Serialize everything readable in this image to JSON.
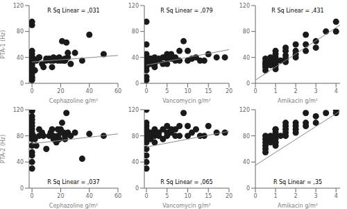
{
  "chart_data": [
    {
      "type": "scatter",
      "xlabel": "Cephazoline g/m²",
      "ylabel": "PTA-1 (Hz)",
      "annotation": "R Sq Linear = ,031",
      "xlim": [
        -2,
        60
      ],
      "ylim": [
        0,
        120
      ],
      "xticks": [
        0,
        20,
        40,
        60
      ],
      "yticks": [
        0,
        40,
        80,
        120
      ],
      "series": [
        {
          "type": "scatter",
          "color": "#1a1a1a",
          "x": [
            0,
            0,
            0,
            0,
            0,
            0,
            0,
            0,
            0,
            0,
            0,
            0,
            0,
            0,
            0,
            0,
            0,
            1,
            1,
            2,
            3,
            5,
            5,
            7,
            8,
            10,
            10,
            12,
            13,
            14,
            15,
            15,
            17,
            18,
            19,
            20,
            20,
            21,
            22,
            23,
            23,
            24,
            25,
            25,
            27,
            30,
            35,
            40,
            50
          ],
          "values": [
            5,
            8,
            10,
            15,
            20,
            25,
            28,
            30,
            33,
            35,
            35,
            40,
            40,
            45,
            50,
            90,
            95,
            35,
            38,
            20,
            35,
            40,
            40,
            30,
            25,
            35,
            38,
            38,
            35,
            25,
            35,
            40,
            38,
            35,
            40,
            35,
            37,
            65,
            35,
            35,
            38,
            63,
            40,
            47,
            30,
            47,
            35,
            75,
            45
          ]
        },
        {
          "type": "line",
          "color": "#888888",
          "x": [
            0,
            60
          ],
          "values": [
            33,
            43
          ]
        }
      ]
    },
    {
      "type": "scatter",
      "xlabel": "Vancomycin g/m²",
      "annotation": "R Sq Linear = ,079",
      "xlim": [
        -0.5,
        20
      ],
      "ylim": [
        0,
        120
      ],
      "xticks": [
        0,
        5,
        10,
        15,
        20
      ],
      "yticks": [
        0,
        40,
        80,
        120
      ],
      "series": [
        {
          "type": "scatter",
          "color": "#1a1a1a",
          "x": [
            0,
            0,
            0,
            0,
            0,
            0,
            0,
            0,
            0,
            0,
            0,
            0,
            0,
            1,
            1,
            1,
            1,
            2,
            2,
            2,
            2,
            3,
            3,
            4,
            4,
            5,
            5,
            5,
            6,
            6,
            7,
            7,
            8,
            8,
            9,
            10,
            10,
            11,
            12,
            13,
            14,
            15,
            17,
            19
          ],
          "values": [
            5,
            10,
            20,
            25,
            28,
            30,
            35,
            35,
            40,
            40,
            45,
            60,
            95,
            30,
            35,
            38,
            38,
            25,
            30,
            35,
            40,
            35,
            38,
            30,
            40,
            30,
            38,
            45,
            38,
            45,
            35,
            40,
            35,
            50,
            65,
            35,
            50,
            38,
            40,
            35,
            35,
            45,
            40,
            40
          ]
        },
        {
          "type": "line",
          "color": "#888888",
          "x": [
            0,
            20
          ],
          "values": [
            28,
            52
          ]
        }
      ]
    },
    {
      "type": "scatter",
      "xlabel": "Amikacin g/m²",
      "annotation": "R Sq Linear = ,431",
      "xlim": [
        0,
        4.2
      ],
      "ylim": [
        0,
        120
      ],
      "xticks": [
        0,
        1,
        2,
        3,
        4
      ],
      "yticks": [
        0,
        40,
        80,
        120
      ],
      "series": [
        {
          "type": "scatter",
          "color": "#1a1a1a",
          "x": [
            0.5,
            0.5,
            0.5,
            0.5,
            0.5,
            0.5,
            0.75,
            0.75,
            0.75,
            0.75,
            1,
            1,
            1,
            1,
            1,
            1,
            1,
            1,
            1,
            1.25,
            1.5,
            1.5,
            1.5,
            1.5,
            1.5,
            2,
            2,
            2,
            2,
            2.5,
            2.5,
            2.5,
            3,
            3,
            3.5,
            4,
            4
          ],
          "values": [
            20,
            25,
            28,
            30,
            33,
            38,
            28,
            32,
            36,
            40,
            22,
            27,
            30,
            33,
            35,
            37,
            40,
            45,
            50,
            35,
            33,
            38,
            43,
            50,
            55,
            40,
            45,
            50,
            60,
            50,
            60,
            75,
            55,
            65,
            80,
            80,
            95
          ]
        },
        {
          "type": "line",
          "color": "#888888",
          "x": [
            0,
            4.2
          ],
          "values": [
            5,
            90
          ]
        }
      ]
    },
    {
      "type": "scatter",
      "xlabel": "Cephazoline g/m²",
      "ylabel": "PTA-2 (Hz)",
      "annotation": "R Sq Linear = ,037",
      "xlim": [
        -2,
        60
      ],
      "ylim": [
        0,
        120
      ],
      "xticks": [
        0,
        20,
        40,
        60
      ],
      "yticks": [
        0,
        40,
        80,
        120
      ],
      "series": [
        {
          "type": "scatter",
          "color": "#1a1a1a",
          "x": [
            0,
            0,
            0,
            0,
            0,
            0,
            0,
            0,
            0,
            0,
            0,
            0,
            0,
            0,
            0,
            0,
            1,
            2,
            3,
            5,
            5,
            7,
            8,
            10,
            12,
            13,
            14,
            15,
            15,
            17,
            18,
            18,
            19,
            20,
            20,
            21,
            22,
            23,
            23,
            24,
            25,
            27,
            30,
            35,
            40,
            50
          ],
          "values": [
            30,
            40,
            50,
            55,
            65,
            75,
            80,
            80,
            85,
            90,
            95,
            100,
            105,
            110,
            120,
            118,
            80,
            75,
            65,
            80,
            90,
            85,
            80,
            60,
            80,
            85,
            90,
            75,
            80,
            70,
            80,
            90,
            75,
            85,
            90,
            100,
            85,
            80,
            75,
            115,
            85,
            80,
            85,
            45,
            83,
            80
          ]
        },
        {
          "type": "line",
          "color": "#888888",
          "x": [
            0,
            60
          ],
          "values": [
            68,
            83
          ]
        }
      ]
    },
    {
      "type": "scatter",
      "xlabel": "Vancomycin g/m²",
      "annotation": "R Sq Linear = ,065",
      "xlim": [
        -0.5,
        20
      ],
      "ylim": [
        0,
        120
      ],
      "xticks": [
        0,
        5,
        10,
        15,
        20
      ],
      "yticks": [
        0,
        40,
        80,
        120
      ],
      "series": [
        {
          "type": "scatter",
          "color": "#1a1a1a",
          "x": [
            0,
            0,
            0,
            0,
            0,
            0,
            0,
            0,
            0,
            0,
            0,
            0,
            0,
            1,
            1,
            1,
            1,
            2,
            2,
            2,
            2,
            3,
            3,
            4,
            4,
            5,
            5,
            5,
            6,
            6,
            7,
            7,
            8,
            8,
            9,
            10,
            10,
            11,
            12,
            13,
            14,
            15,
            17,
            19
          ],
          "values": [
            30,
            40,
            50,
            60,
            70,
            75,
            80,
            80,
            85,
            90,
            95,
            100,
            120,
            75,
            80,
            80,
            85,
            70,
            80,
            85,
            90,
            80,
            85,
            75,
            90,
            80,
            85,
            95,
            85,
            90,
            80,
            90,
            80,
            95,
            115,
            80,
            95,
            85,
            90,
            80,
            80,
            95,
            85,
            85
          ]
        },
        {
          "type": "line",
          "color": "#888888",
          "x": [
            0,
            20
          ],
          "values": [
            63,
            87
          ]
        }
      ]
    },
    {
      "type": "scatter",
      "xlabel": "Amikacin g/m²",
      "annotation": "R Sq Linear = ,35",
      "xlim": [
        0,
        4.2
      ],
      "ylim": [
        0,
        120
      ],
      "xticks": [
        0,
        1,
        2,
        3,
        4
      ],
      "yticks": [
        0,
        40,
        80,
        120
      ],
      "series": [
        {
          "type": "scatter",
          "color": "#1a1a1a",
          "x": [
            0.5,
            0.5,
            0.5,
            0.5,
            0.5,
            0.5,
            0.75,
            0.75,
            0.75,
            0.75,
            1,
            1,
            1,
            1,
            1,
            1,
            1,
            1,
            1,
            1.25,
            1.5,
            1.5,
            1.5,
            1.5,
            1.5,
            2,
            2,
            2,
            2,
            2.5,
            2.5,
            2.5,
            3,
            3,
            3.5,
            4,
            4
          ],
          "values": [
            55,
            60,
            65,
            70,
            75,
            80,
            70,
            75,
            78,
            80,
            65,
            70,
            70,
            75,
            80,
            80,
            85,
            90,
            90,
            80,
            80,
            85,
            90,
            95,
            100,
            85,
            90,
            95,
            100,
            95,
            100,
            115,
            100,
            110,
            115,
            115,
            120
          ]
        },
        {
          "type": "line",
          "color": "#888888",
          "x": [
            0,
            4.2
          ],
          "values": [
            35,
            118
          ]
        }
      ]
    }
  ]
}
